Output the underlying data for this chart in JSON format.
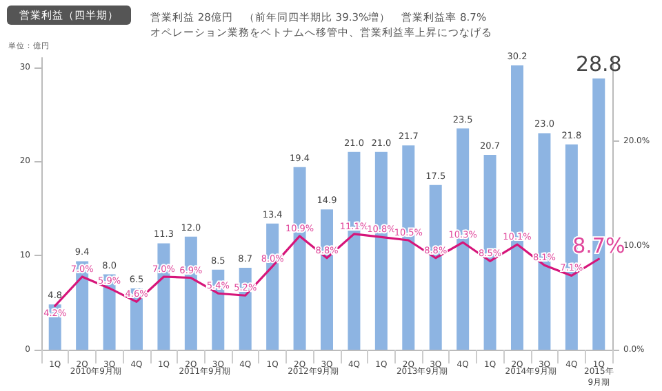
{
  "chart_data": {
    "type": "bar",
    "title": "営業利益（四半期）",
    "subtitle": "営業利益 28億円　（前年同四半期比 39.3%増）　営業利益率 8.7%\nオペレーション業務をベトナムへ移管中、営業利益率上昇につなげる",
    "annotations": [
      "単位：億円",
      "2010年9月期",
      "2011年9月期",
      "2012年9月期",
      "2013年9月期",
      "2014年9月期",
      "2015年\n9月期"
    ],
    "categories": [
      "1Q",
      "2Q",
      "3Q",
      "4Q",
      "1Q",
      "2Q",
      "3Q",
      "4Q",
      "1Q",
      "2Q",
      "3Q",
      "4Q",
      "1Q",
      "2Q",
      "3Q",
      "4Q",
      "1Q",
      "2Q",
      "3Q",
      "4Q",
      "1Q"
    ],
    "series": [
      {
        "color": "#8db4e2",
        "values": [
          4.8,
          9.4,
          8.0,
          6.5,
          11.3,
          12.0,
          8.5,
          8.7,
          13.4,
          19.4,
          14.9,
          21.0,
          21.0,
          21.7,
          17.5,
          23.5,
          20.7,
          30.2,
          23.0,
          21.8,
          28.8
        ],
        "value_labels": [
          "4.8",
          "9.4",
          "8.0",
          "6.5",
          "11.3",
          "12.0",
          "8.5",
          "8.7",
          "13.4",
          "19.4",
          "14.9",
          "21.0",
          "21.0",
          "21.7",
          "17.5",
          "23.5",
          "20.7",
          "30.2",
          "23.0",
          "21.8",
          "28.8"
        ]
      },
      {
        "type": "line",
        "axis": "y2",
        "color": "#d6157a",
        "values": [
          4.2,
          7.0,
          5.9,
          4.6,
          7.0,
          6.9,
          5.4,
          5.2,
          8.0,
          10.9,
          8.8,
          11.1,
          10.8,
          10.5,
          8.8,
          10.3,
          8.5,
          10.1,
          8.1,
          7.1,
          8.7
        ],
        "value_labels": [
          "4.2%",
          "7.0%",
          "5.9%",
          "4.6%",
          "7.0%",
          "6.9%",
          "5.4%",
          "5.2%",
          "8.0%",
          "10.9%",
          "8.8%",
          "11.1%",
          "10.8%",
          "10.5%",
          "8.8%",
          "10.3%",
          "8.5%",
          "10.1%",
          "8.1%",
          "7.1%",
          "8.7%"
        ]
      }
    ],
    "ylim": [
      0,
      31
    ],
    "yticks": [
      0,
      10,
      20,
      30
    ],
    "y2lim": [
      0,
      28
    ],
    "y2ticks": [
      {
        "value": 0,
        "label": "0.0%"
      },
      {
        "value": 10,
        "label": "10.0%"
      },
      {
        "value": 20,
        "label": "20.0%"
      }
    ],
    "grid": false,
    "marker": "none",
    "line_style": "solid"
  }
}
